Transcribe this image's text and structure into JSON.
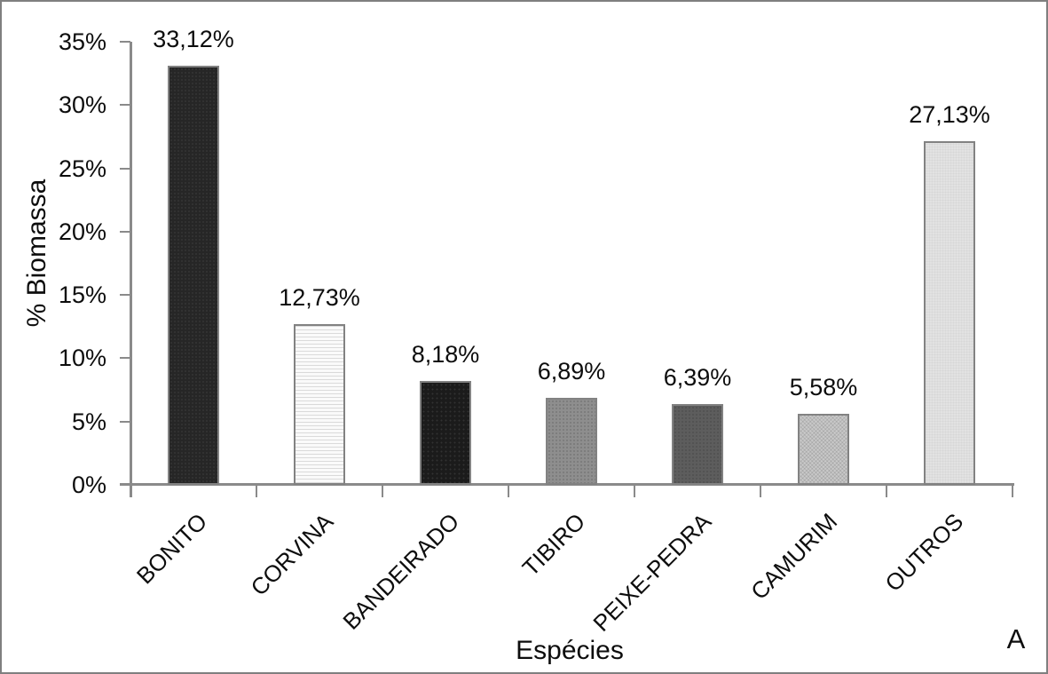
{
  "figure": {
    "panel_letter": "A",
    "background_color": "#ffffff",
    "frame_color": "#7f7f7f",
    "axis_color": "#8a8a8a",
    "text_color": "#0d0d0d"
  },
  "chart_data": {
    "type": "bar",
    "title": "",
    "xlabel": "Espécies",
    "ylabel": "% Biomassa",
    "categories": [
      "BONITO",
      "CORVINA",
      "BANDEIRADO",
      "TIBIRO",
      "PEIXE-PEDRA",
      "CAMURIM",
      "OUTROS"
    ],
    "values": [
      33.12,
      12.73,
      8.18,
      6.89,
      6.39,
      5.58,
      27.13
    ],
    "value_labels": [
      "33,12%",
      "12,73%",
      "8,18%",
      "6,89%",
      "6,39%",
      "5,58%",
      "27,13%"
    ],
    "bar_fills": [
      "#262626",
      "#fafafa",
      "#1b1b1b",
      "#8e8e8e",
      "#5d5d5d",
      "#c9c9c9",
      "#e2e2e2"
    ],
    "bar_patterns": [
      "fine-dots-dark",
      "hlines",
      "dots-dark",
      "dots-mid",
      "dots-dark-mid",
      "checker-light",
      "checker-faint"
    ],
    "ylim": [
      0,
      35
    ],
    "y_ticks": [
      {
        "value": 0,
        "label": "0%"
      },
      {
        "value": 5,
        "label": "5%"
      },
      {
        "value": 10,
        "label": "10%"
      },
      {
        "value": 15,
        "label": "15%"
      },
      {
        "value": 20,
        "label": "20%"
      },
      {
        "value": 25,
        "label": "25%"
      },
      {
        "value": 30,
        "label": "30%"
      },
      {
        "value": 35,
        "label": "35%"
      }
    ],
    "grid": false,
    "legend_position": "none",
    "x_label_rotation_deg": 45,
    "data_labels_shown": true
  }
}
